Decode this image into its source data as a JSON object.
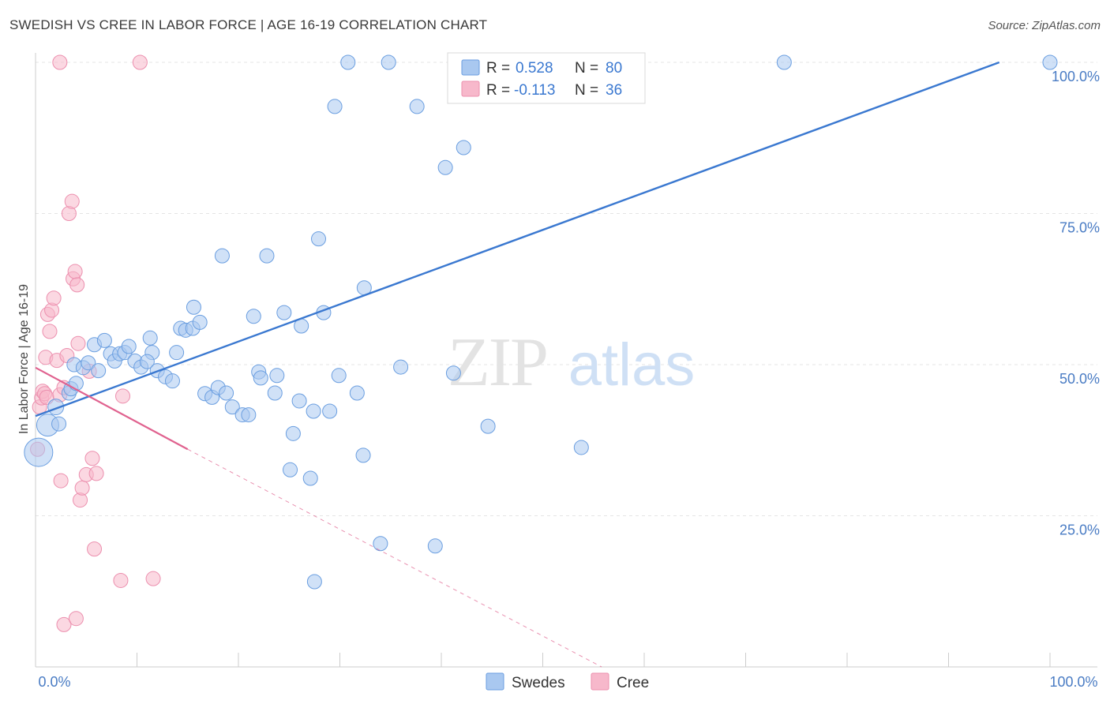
{
  "header": {
    "title": "SWEDISH VS CREE IN LABOR FORCE | AGE 16-19 CORRELATION CHART",
    "source": "Source: ZipAtlas.com"
  },
  "watermark": {
    "zip": "ZIP",
    "atlas": "atlas"
  },
  "legend": {
    "r_label": "R =",
    "n_label": "N =",
    "rows": [
      {
        "r": "0.528",
        "n": "80",
        "color": "#a9c8f0"
      },
      {
        "r": "-0.113",
        "n": "36",
        "color": "#f7b8cb"
      }
    ]
  },
  "chart_data": {
    "type": "scatter",
    "ylabel": "In Labor Force | Age 16-19",
    "xlim": [
      0,
      100
    ],
    "ylim": [
      0,
      100
    ],
    "x_tick_labels": [
      "0.0%",
      "100.0%"
    ],
    "y_tick_labels": [
      "25.0%",
      "50.0%",
      "75.0%",
      "100.0%"
    ],
    "y_ticks": [
      25,
      50,
      75,
      100
    ],
    "grid": true,
    "colors": {
      "swedes_fill": "#a9c8f0",
      "swedes_stroke": "#6a9ee0",
      "swedes_line": "#3a78d0",
      "cree_fill": "#f7b8cb",
      "cree_stroke": "#ec8fae",
      "cree_line": "#e0628f"
    },
    "series": [
      {
        "name": "Swedes",
        "trend": {
          "x": [
            0,
            95
          ],
          "y": [
            41.5,
            100
          ]
        },
        "points": [
          [
            0.3,
            35.5,
            18
          ],
          [
            1.2,
            40.0,
            14
          ],
          [
            2.0,
            43.0,
            10
          ],
          [
            3.3,
            45.3,
            9
          ],
          [
            3.5,
            46.0,
            9
          ],
          [
            4.0,
            46.9,
            9
          ],
          [
            3.8,
            50.0,
            9
          ],
          [
            4.7,
            49.5,
            9
          ],
          [
            5.2,
            50.3,
            9
          ],
          [
            6.2,
            49.0,
            9
          ],
          [
            5.8,
            53.3,
            9
          ],
          [
            6.8,
            54.0,
            9
          ],
          [
            7.4,
            51.8,
            9
          ],
          [
            7.8,
            50.6,
            9
          ],
          [
            8.3,
            51.8,
            9
          ],
          [
            8.8,
            52.0,
            9
          ],
          [
            9.2,
            53.0,
            9
          ],
          [
            9.8,
            50.6,
            9
          ],
          [
            10.4,
            49.6,
            9
          ],
          [
            11.3,
            54.4,
            9
          ],
          [
            11.5,
            52.0,
            9
          ],
          [
            11.0,
            50.5,
            9
          ],
          [
            12.0,
            49.0,
            9
          ],
          [
            12.8,
            48.0,
            9
          ],
          [
            13.5,
            47.3,
            9
          ],
          [
            13.9,
            52.0,
            9
          ],
          [
            14.3,
            56.0,
            9
          ],
          [
            14.8,
            55.7,
            9
          ],
          [
            15.5,
            56.0,
            9
          ],
          [
            15.6,
            59.5,
            9
          ],
          [
            16.2,
            57.0,
            9
          ],
          [
            16.7,
            45.2,
            9
          ],
          [
            17.4,
            44.6,
            9
          ],
          [
            18.0,
            46.2,
            9
          ],
          [
            18.4,
            68.0,
            9
          ],
          [
            18.8,
            45.3,
            9
          ],
          [
            19.4,
            43.0,
            9
          ],
          [
            20.4,
            41.7,
            9
          ],
          [
            21.0,
            41.7,
            9
          ],
          [
            21.5,
            58.0,
            9
          ],
          [
            22.0,
            48.8,
            9
          ],
          [
            22.2,
            47.8,
            9
          ],
          [
            22.8,
            68.0,
            9
          ],
          [
            23.6,
            45.3,
            9
          ],
          [
            23.8,
            48.2,
            9
          ],
          [
            24.5,
            58.6,
            9
          ],
          [
            25.1,
            32.6,
            9
          ],
          [
            25.4,
            38.6,
            9
          ],
          [
            26.0,
            44.0,
            9
          ],
          [
            26.2,
            56.4,
            9
          ],
          [
            27.1,
            31.2,
            9
          ],
          [
            27.4,
            42.3,
            9
          ],
          [
            27.5,
            14.1,
            9
          ],
          [
            27.9,
            70.8,
            9
          ],
          [
            28.4,
            58.6,
            9
          ],
          [
            29.0,
            42.3,
            9
          ],
          [
            29.9,
            48.2,
            9
          ],
          [
            29.5,
            92.7,
            9
          ],
          [
            30.8,
            100.0,
            9
          ],
          [
            31.7,
            45.3,
            9
          ],
          [
            32.4,
            62.7,
            9
          ],
          [
            32.3,
            35.0,
            9
          ],
          [
            34.0,
            20.4,
            9
          ],
          [
            34.8,
            100.0,
            9
          ],
          [
            36.0,
            49.6,
            9
          ],
          [
            37.6,
            92.7,
            9
          ],
          [
            39.4,
            20.0,
            9
          ],
          [
            40.4,
            82.6,
            9
          ],
          [
            41.2,
            48.6,
            9
          ],
          [
            42.2,
            85.9,
            9
          ],
          [
            42.4,
            100.0,
            9
          ],
          [
            44.6,
            39.8,
            9
          ],
          [
            48.2,
            100.0,
            9
          ],
          [
            50.6,
            100.0,
            9
          ],
          [
            53.8,
            36.3,
            9
          ],
          [
            56.3,
            100.0,
            9
          ],
          [
            73.8,
            100.0,
            9
          ],
          [
            100.0,
            100.0,
            9
          ],
          [
            48.4,
            100.0,
            9
          ],
          [
            2.3,
            40.2,
            9
          ]
        ]
      },
      {
        "name": "Cree",
        "trend": {
          "x": [
            0,
            15
          ],
          "y": [
            49.5,
            36.0
          ]
        },
        "trend_dashed": {
          "x": [
            15,
            55.8
          ],
          "y": [
            36.0,
            0
          ]
        },
        "points": [
          [
            0.2,
            36.0,
            9
          ],
          [
            0.4,
            43.0,
            9
          ],
          [
            0.6,
            44.5,
            9
          ],
          [
            0.7,
            45.6,
            9
          ],
          [
            0.9,
            45.2,
            9
          ],
          [
            1.1,
            44.6,
            9
          ],
          [
            1.0,
            51.2,
            9
          ],
          [
            1.2,
            58.3,
            9
          ],
          [
            1.4,
            55.5,
            9
          ],
          [
            1.6,
            59.0,
            9
          ],
          [
            1.8,
            61.0,
            9
          ],
          [
            2.1,
            50.7,
            9
          ],
          [
            2.4,
            45.0,
            9
          ],
          [
            2.8,
            46.2,
            9
          ],
          [
            2.4,
            100.0,
            9
          ],
          [
            3.1,
            51.5,
            9
          ],
          [
            3.3,
            75.0,
            9
          ],
          [
            3.6,
            77.0,
            9
          ],
          [
            3.7,
            64.2,
            9
          ],
          [
            3.9,
            65.4,
            9
          ],
          [
            4.1,
            63.2,
            9
          ],
          [
            4.2,
            53.5,
            9
          ],
          [
            4.4,
            27.6,
            9
          ],
          [
            4.6,
            29.6,
            9
          ],
          [
            2.5,
            30.8,
            9
          ],
          [
            2.8,
            7.0,
            9
          ],
          [
            4.0,
            8.0,
            9
          ],
          [
            5.0,
            31.8,
            9
          ],
          [
            5.6,
            34.5,
            9
          ],
          [
            6.0,
            32.0,
            9
          ],
          [
            5.3,
            48.9,
            9
          ],
          [
            5.8,
            19.5,
            9
          ],
          [
            8.4,
            14.3,
            9
          ],
          [
            8.6,
            44.8,
            9
          ],
          [
            10.3,
            100.0,
            9
          ],
          [
            11.6,
            14.6,
            9
          ]
        ]
      }
    ]
  }
}
